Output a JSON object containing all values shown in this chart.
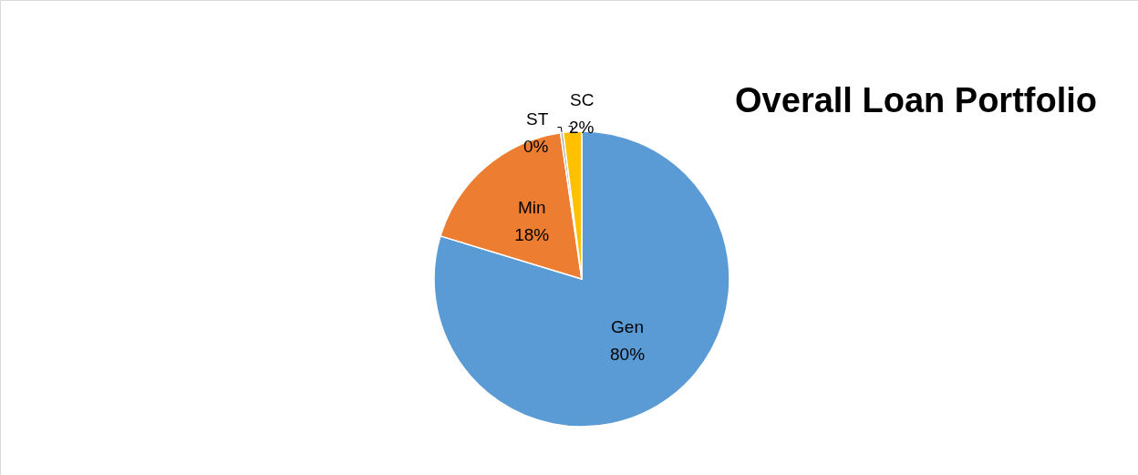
{
  "chart_data": {
    "type": "pie",
    "title": "Overall Loan Portfolio",
    "categories": [
      "Gen",
      "Min",
      "ST",
      "SC"
    ],
    "values": [
      79.7,
      18,
      0.3,
      2
    ],
    "value_labels": [
      "80%",
      "18%",
      "0%",
      "2%"
    ],
    "colors": [
      "#5b9bd5",
      "#ed7d31",
      "#a5a5a5",
      "#ffc000"
    ],
    "legend": false
  }
}
